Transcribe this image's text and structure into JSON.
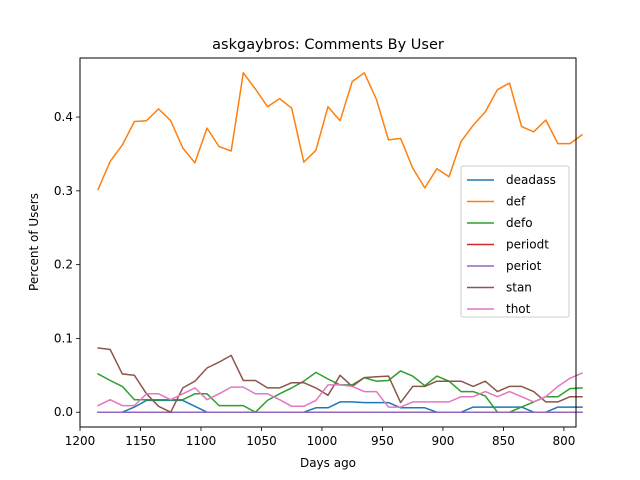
{
  "chart_data": {
    "type": "line",
    "title": "askgaybros: Comments By User",
    "xlabel": "Days ago",
    "ylabel": "Percent of Users",
    "xlim": [
      1200,
      790
    ],
    "ylim": [
      -0.02,
      0.48
    ],
    "x_reversed": true,
    "xticks": [
      1200,
      1150,
      1100,
      1050,
      1000,
      950,
      900,
      850,
      800
    ],
    "yticks": [
      0.0,
      0.1,
      0.2,
      0.3,
      0.4
    ],
    "xtick_labels": [
      "1200",
      "1150",
      "1100",
      "1050",
      "1000",
      "950",
      "900",
      "850",
      "800"
    ],
    "ytick_labels": [
      "0.0",
      "0.1",
      "0.2",
      "0.3",
      "0.4"
    ],
    "grid": false,
    "legend_position": "center-right",
    "x": [
      1185,
      1175,
      1165,
      1155,
      1145,
      1135,
      1125,
      1115,
      1105,
      1095,
      1085,
      1075,
      1065,
      1055,
      1045,
      1035,
      1025,
      1015,
      1005,
      995,
      985,
      975,
      965,
      955,
      945,
      935,
      925,
      915,
      905,
      895,
      885,
      875,
      865,
      855,
      845,
      835,
      825,
      815,
      805,
      795,
      785
    ],
    "series": [
      {
        "name": "deadass",
        "color": "#1f77b4",
        "values": [
          0.0,
          0.0,
          0.0,
          0.007,
          0.016,
          0.016,
          0.016,
          0.016,
          0.008,
          0.0,
          0.0,
          0.0,
          0.0,
          0.0,
          0.0,
          0.0,
          0.0,
          0.0,
          0.006,
          0.006,
          0.014,
          0.014,
          0.013,
          0.013,
          0.013,
          0.006,
          0.006,
          0.006,
          0.0,
          0.0,
          0.0,
          0.007,
          0.007,
          0.007,
          0.007,
          0.007,
          0.0,
          0.0,
          0.007,
          0.007,
          0.007
        ]
      },
      {
        "name": "def",
        "color": "#ff7f0e",
        "values": [
          0.302,
          0.34,
          0.362,
          0.394,
          0.395,
          0.411,
          0.395,
          0.358,
          0.338,
          0.385,
          0.36,
          0.354,
          0.46,
          0.438,
          0.414,
          0.425,
          0.412,
          0.339,
          0.355,
          0.414,
          0.395,
          0.448,
          0.46,
          0.424,
          0.369,
          0.371,
          0.331,
          0.304,
          0.33,
          0.319,
          0.367,
          0.389,
          0.407,
          0.437,
          0.446,
          0.387,
          0.38,
          0.396,
          0.364,
          0.364,
          0.376
        ]
      },
      {
        "name": "defo",
        "color": "#2ca02c",
        "values": [
          0.052,
          0.043,
          0.035,
          0.017,
          0.017,
          0.017,
          0.017,
          0.017,
          0.025,
          0.025,
          0.009,
          0.009,
          0.009,
          0.0,
          0.016,
          0.025,
          0.033,
          0.042,
          0.054,
          0.045,
          0.037,
          0.037,
          0.047,
          0.042,
          0.043,
          0.056,
          0.049,
          0.036,
          0.049,
          0.042,
          0.028,
          0.028,
          0.022,
          0.0,
          0.0,
          0.007,
          0.014,
          0.021,
          0.021,
          0.032,
          0.033
        ]
      },
      {
        "name": "periodt",
        "color": "#d62728",
        "values": [
          0.0,
          0.0,
          0.0,
          0.0,
          0.0,
          0.0,
          0.0,
          0.0,
          0.0,
          0.0,
          0.0,
          0.0,
          0.0,
          0.0,
          0.0,
          0.0,
          0.0,
          0.0,
          0.0,
          0.0,
          0.0,
          0.0,
          0.0,
          0.0,
          0.0,
          0.0,
          0.0,
          0.0,
          0.0,
          0.0,
          0.0,
          0.0,
          0.0,
          0.0,
          0.0,
          0.0,
          0.0,
          0.0,
          0.0,
          0.0,
          0.0
        ]
      },
      {
        "name": "periot",
        "color": "#9467bd",
        "values": [
          0.0,
          0.0,
          0.0,
          0.0,
          0.0,
          0.0,
          0.0,
          0.0,
          0.0,
          0.0,
          0.0,
          0.0,
          0.0,
          0.0,
          0.0,
          0.0,
          0.0,
          0.0,
          0.0,
          0.0,
          0.0,
          0.0,
          0.0,
          0.0,
          0.0,
          0.0,
          0.0,
          0.0,
          0.0,
          0.0,
          0.0,
          0.0,
          0.0,
          0.0,
          0.0,
          0.0,
          0.0,
          0.0,
          0.0,
          0.0,
          0.0
        ]
      },
      {
        "name": "stan",
        "color": "#8c564b",
        "values": [
          0.087,
          0.085,
          0.052,
          0.05,
          0.025,
          0.008,
          0.0,
          0.033,
          0.042,
          0.06,
          0.068,
          0.077,
          0.043,
          0.043,
          0.033,
          0.033,
          0.04,
          0.04,
          0.033,
          0.023,
          0.05,
          0.035,
          0.047,
          0.048,
          0.049,
          0.013,
          0.035,
          0.035,
          0.042,
          0.042,
          0.042,
          0.035,
          0.042,
          0.028,
          0.035,
          0.035,
          0.028,
          0.014,
          0.014,
          0.021,
          0.021
        ]
      },
      {
        "name": "thot",
        "color": "#e377c2",
        "values": [
          0.009,
          0.017,
          0.009,
          0.009,
          0.025,
          0.025,
          0.017,
          0.025,
          0.033,
          0.017,
          0.025,
          0.034,
          0.034,
          0.025,
          0.025,
          0.017,
          0.008,
          0.008,
          0.016,
          0.037,
          0.037,
          0.035,
          0.028,
          0.028,
          0.007,
          0.007,
          0.014,
          0.014,
          0.014,
          0.014,
          0.021,
          0.021,
          0.028,
          0.021,
          0.028,
          0.021,
          0.014,
          0.021,
          0.035,
          0.046,
          0.053
        ]
      }
    ]
  }
}
